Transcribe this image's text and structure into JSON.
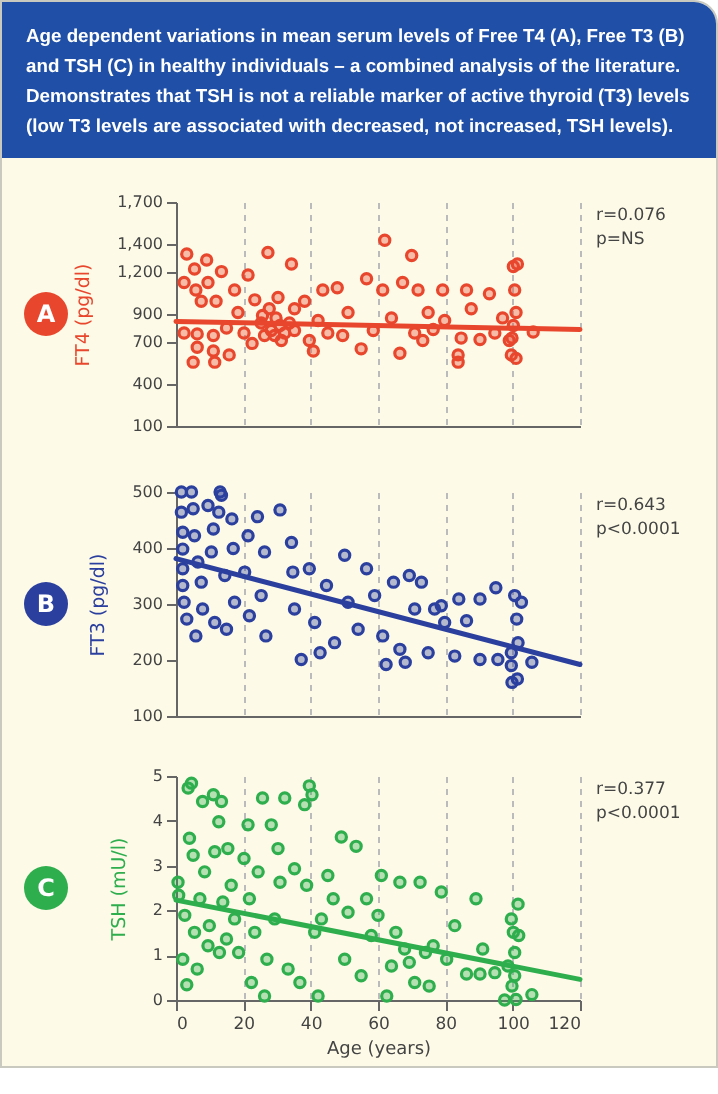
{
  "chart_data": [
    {
      "type": "scatter",
      "subtitle": "Age dependent variations in mean serum levels of Free T4 (A), Free T3 (B) and TSH (C) in healthy individuals – a combined analysis of the literature. Demonstrates that TSH is not a reliable marker of active thyroid (T3) levels (low T3 levels are associated with decreased, not increased, TSH levels).",
      "title": "A",
      "ylabel": "FT4 (pg/dl)",
      "xlim": [
        0,
        120
      ],
      "xticks": [
        0,
        20,
        40,
        60,
        80,
        100,
        120
      ],
      "ylim": [
        100,
        1700
      ],
      "yticks": [
        100,
        400,
        700,
        900,
        {
          "value": 1200,
          "label": "1,200"
        },
        {
          "value": 1400,
          "label": "1,400"
        },
        {
          "value": 1700,
          "label": "1,700"
        }
      ],
      "tick_labels": "y",
      "grid": "x",
      "marker": "circle",
      "annotations": [
        "r=0.076",
        "p=NS"
      ],
      "series": [
        {
          "color": "#e8472d",
          "x": [
            3.2,
            2.4,
            2.4,
            5.1,
            6.3,
            6.3,
            5.9,
            5.5,
            7.5,
            9.1,
            9.5,
            11.1,
            11.1,
            11.5,
            11.9,
            13.5,
            15,
            15.8,
            17.4,
            18.4,
            20.2,
            21.4,
            22.6,
            23.4,
            25.7,
            27.3,
            28.3,
            29.3,
            30.3,
            31.3,
            33.7,
            34.3,
            35.2,
            38.2,
            39.6,
            40.8,
            42.2,
            43.6,
            45.1,
            47.9,
            49.5,
            51.1,
            55,
            56.6,
            58.6,
            62,
            61.4,
            64,
            66.5,
            67.3,
            70,
            70.9,
            71.9,
            73.3,
            74.9,
            76.4,
            79.2,
            79.8,
            83.8,
            83.8,
            84.7,
            86.3,
            87.7,
            90.3,
            93.1,
            94.7,
            97,
            99,
            99.6,
            100.2,
            101.4,
            100.6,
            101,
            100.2,
            99.8,
            101,
            106.1,
            25.3,
            26.3,
            27.7,
            29.7,
            30.9,
            32.3,
            35.2
          ],
          "values": [
            1329,
            1125,
            764,
            556,
            662,
            758,
            1071,
            1221,
            991,
            1286,
            1125,
            746,
            636,
            556,
            991,
            1203,
            800,
            608,
            1071,
            911,
            764,
            1179,
            690,
            1001,
            890,
            1339,
            782,
            746,
            1018,
            711,
            836,
            1257,
            937,
            991,
            711,
            636,
            854,
            1071,
            764,
            1088,
            746,
            911,
            651,
            1152,
            782,
            1427,
            1071,
            872,
            620,
            1125,
            1318,
            764,
            1071,
            711,
            911,
            789,
            1071,
            854,
            556,
            608,
            728,
            1071,
            937,
            718,
            1045,
            764,
            872,
            711,
            608,
            1239,
            1257,
            1071,
            911,
            818,
            728,
            583,
            771,
            836,
            746,
            937,
            872,
            818,
            764,
            782
          ]
        },
        {
          "type": "line",
          "marker": "none",
          "color": "#e8472d",
          "x": [
            0,
            120
          ],
          "values": [
            847,
            789
          ]
        }
      ]
    },
    {
      "type": "scatter",
      "title": "B",
      "ylabel": "FT3 (pg/dl)",
      "xlim": [
        0,
        120
      ],
      "xticks": [
        0,
        20,
        40,
        60,
        80,
        100,
        120
      ],
      "ylim": [
        100,
        500
      ],
      "yticks": [
        100,
        200,
        300,
        400,
        500
      ],
      "tick_labels": "y",
      "grid": "x",
      "marker": "circle",
      "annotations": [
        "r=0.643",
        "p<0.0001"
      ],
      "series": [
        {
          "color": "#2b3f9e",
          "x": [
            1.6,
            1.6,
            2,
            2,
            2,
            2,
            2.4,
            3.2,
            4.6,
            5.1,
            5.5,
            5.9,
            6.5,
            7.5,
            7.9,
            9.5,
            10.5,
            11.1,
            11.5,
            12.7,
            13.1,
            13.5,
            14.5,
            15,
            16.6,
            17,
            17.4,
            20.4,
            21.4,
            21.8,
            24.2,
            25.3,
            26.3,
            26.7,
            30.9,
            34.3,
            34.7,
            35.2,
            37.2,
            39.6,
            41.2,
            42.8,
            44.7,
            47.1,
            50.1,
            51.1,
            54.1,
            56.6,
            59,
            61.4,
            62.4,
            64.6,
            66.5,
            68.1,
            69.3,
            70.9,
            72.9,
            74.9,
            76.8,
            78.8,
            79.8,
            82.8,
            84,
            86.3,
            90.3,
            90.3,
            95,
            95.6,
            99.6,
            99.6,
            99.8,
            100.6,
            101.2,
            101.6,
            101.4,
            102.6,
            105.7
          ],
          "values": [
            500,
            464,
            428,
            398,
            363,
            333,
            303,
            273,
            500,
            470,
            422,
            243,
            375,
            339,
            291,
            476,
            393,
            434,
            267,
            464,
            500,
            494,
            351,
            255,
            452,
            399,
            303,
            357,
            422,
            279,
            456,
            315,
            393,
            243,
            468,
            410,
            357,
            291,
            201,
            363,
            267,
            213,
            333,
            231,
            387,
            303,
            255,
            363,
            315,
            243,
            192,
            339,
            219,
            196,
            351,
            291,
            339,
            213,
            291,
            297,
            267,
            207,
            309,
            270,
            201,
            309,
            329,
            201,
            213,
            190,
            160,
            315,
            273,
            231,
            166,
            303,
            196
          ]
        },
        {
          "type": "line",
          "marker": "none",
          "color": "#2b3f9e",
          "x": [
            0,
            120
          ],
          "values": [
            381,
            192
          ]
        }
      ]
    },
    {
      "type": "scatter",
      "title": "C",
      "ylabel": "TSH (mU/l)",
      "xlabel": "Age (years)",
      "xlim": [
        0,
        120
      ],
      "xticks": [
        0,
        20,
        40,
        60,
        80,
        100,
        120
      ],
      "ylim": [
        0,
        5
      ],
      "yticks": [
        0,
        1,
        2,
        3,
        4,
        5
      ],
      "grid": "x",
      "marker": "circle",
      "annotations": [
        "r=0.377",
        "p<0.0001"
      ],
      "series": [
        {
          "color": "#2fae4e",
          "x": [
            0.6,
            0.8,
            2,
            2.6,
            3.2,
            3.6,
            4,
            4.6,
            5.1,
            5.5,
            6.3,
            7.1,
            7.9,
            8.5,
            9.5,
            9.9,
            11.1,
            11.5,
            12.7,
            12.9,
            13.5,
            13.9,
            15,
            15.4,
            16.4,
            17.4,
            18.6,
            20.2,
            21.4,
            21.8,
            22.4,
            23.4,
            24.4,
            25.7,
            26.3,
            27,
            28.3,
            29.3,
            30.3,
            30.9,
            32.3,
            33.3,
            35.2,
            36.8,
            38.2,
            38.8,
            39.6,
            40.4,
            41.2,
            42.2,
            43.2,
            45.1,
            46.7,
            49.1,
            50.1,
            51.1,
            53.5,
            55,
            56.6,
            58,
            60,
            61,
            62.6,
            64,
            65.3,
            66.5,
            67.9,
            69.3,
            70.9,
            72.5,
            74.1,
            75.2,
            76.4,
            78.8,
            80.4,
            82.8,
            86.3,
            89.1,
            90.3,
            91.1,
            94.7,
            97.6,
            98.6,
            99.6,
            100.2,
            100.6,
            99.8,
            101,
            101.6,
            101.8,
            100.6,
            105.7
          ],
          "values": [
            2.63,
            2.34,
            0.91,
            1.89,
            0.34,
            4.73,
            3.61,
            4.84,
            3.23,
            1.51,
            0.69,
            2.26,
            4.43,
            2.86,
            1.21,
            1.66,
            4.58,
            3.31,
            3.98,
            1.06,
            4.43,
            2.19,
            1.36,
            3.38,
            2.56,
            1.81,
            1.06,
            3.16,
            3.91,
            2.26,
            0.39,
            1.51,
            2.86,
            4.51,
            0.09,
            0.91,
            3.91,
            1.81,
            3.38,
            2.63,
            4.51,
            0.69,
            2.93,
            0.39,
            4.36,
            2.56,
            4.78,
            4.58,
            1.51,
            0.09,
            1.81,
            2.78,
            2.26,
            3.64,
            0.91,
            1.96,
            3.43,
            0.54,
            2.26,
            1.44,
            1.89,
            2.78,
            0.09,
            0.76,
            1.51,
            2.63,
            1.14,
            0.84,
            0.39,
            2.63,
            1.06,
            0.31,
            1.21,
            2.41,
            0.91,
            1.66,
            0.58,
            2.26,
            0.58,
            1.14,
            0.61,
            0,
            0.76,
            1.81,
            1.51,
            1.06,
            0.31,
            0.01,
            2.14,
            1.44,
            0.54,
            0.12
          ]
        },
        {
          "type": "line",
          "marker": "none",
          "color": "#2fae4e",
          "x": [
            0,
            120
          ],
          "values": [
            2.23,
            0.46
          ]
        }
      ]
    }
  ]
}
